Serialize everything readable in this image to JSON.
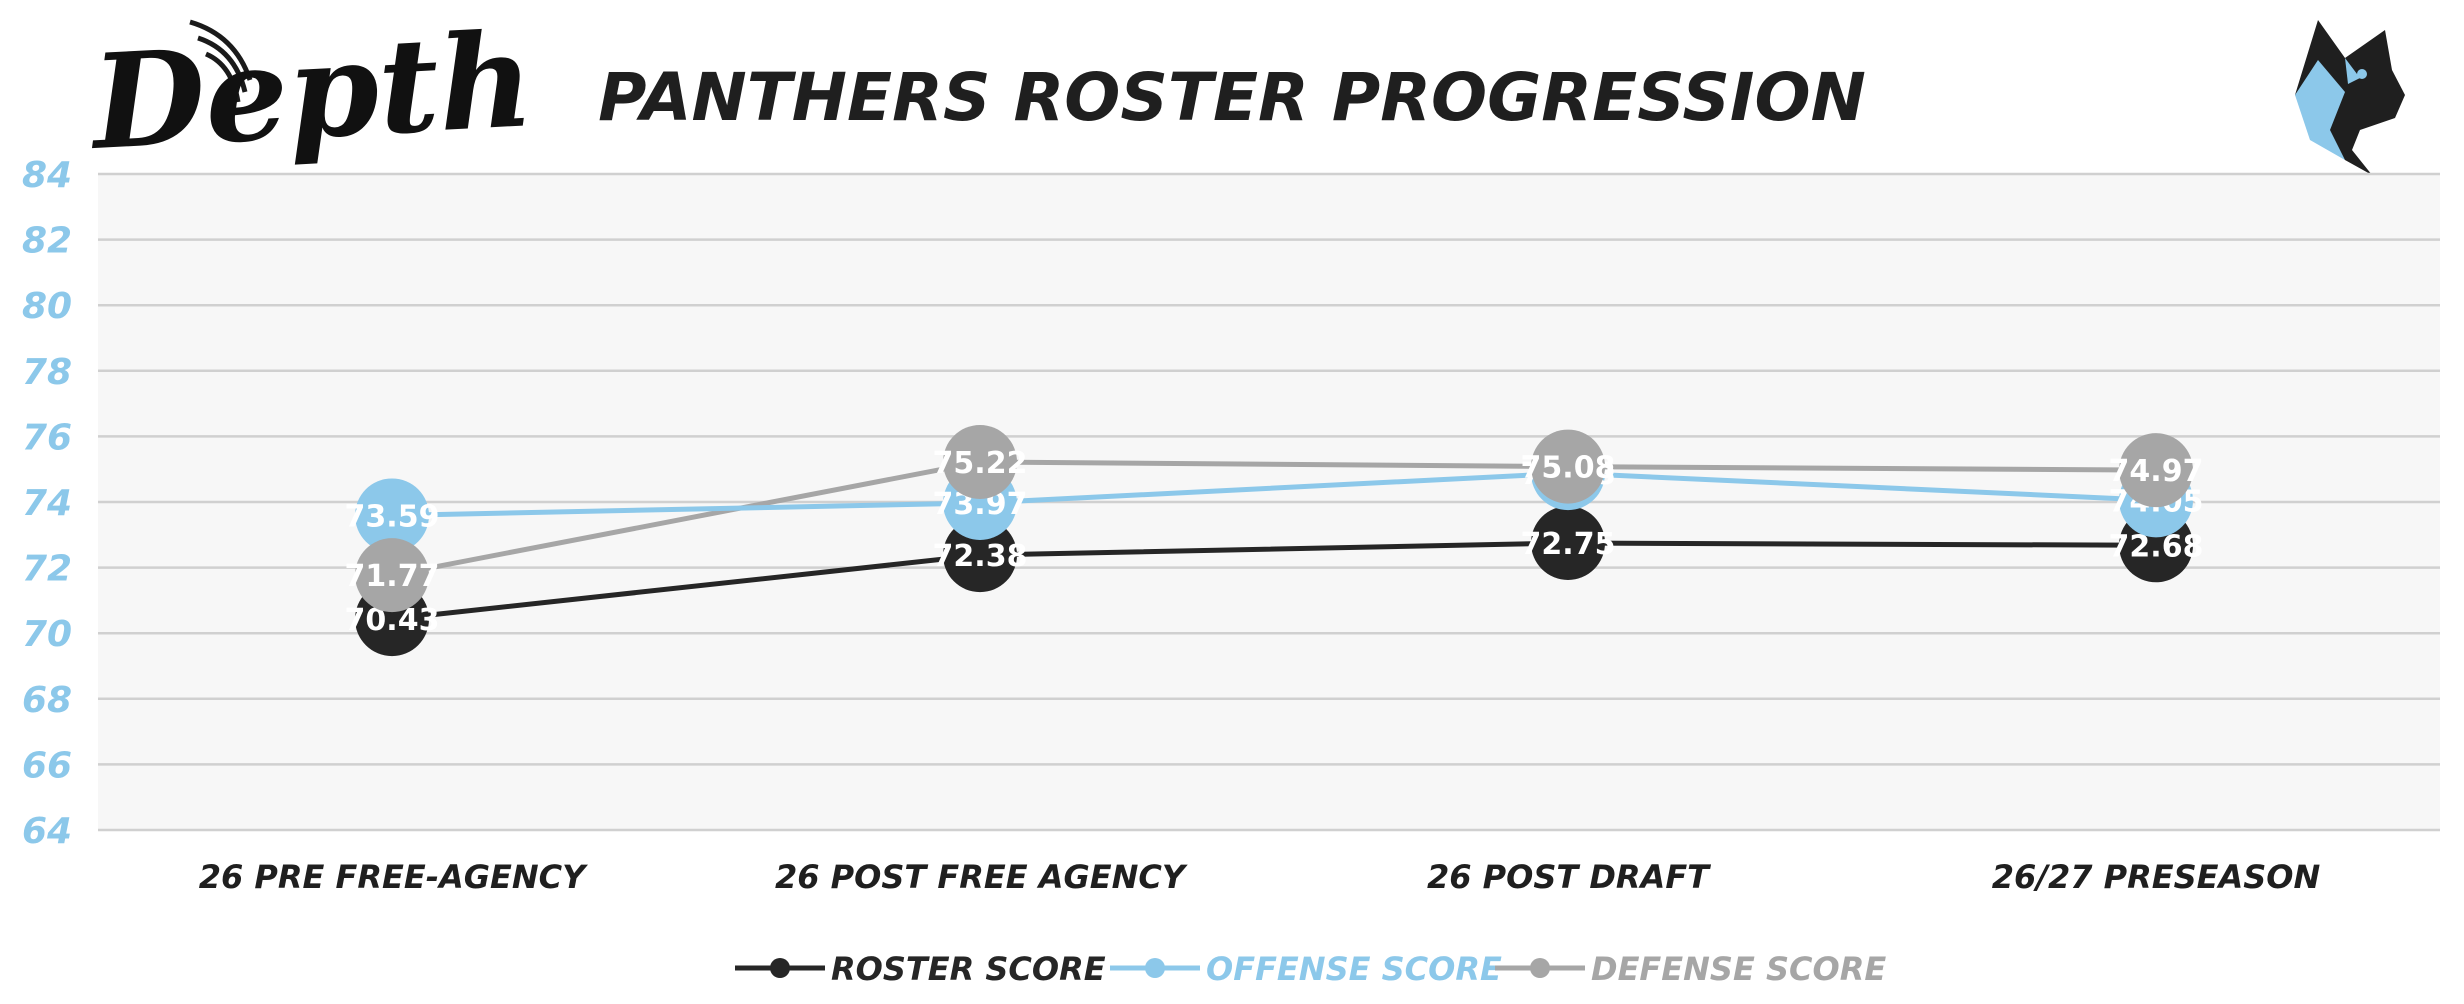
{
  "logo": {
    "brand_text": "Depth"
  },
  "colors": {
    "plot_bg": "#f7f7f7",
    "grid": "#d0d0d0",
    "axis_tick": "#8cc8ea",
    "text_dark": "#1f1f1f",
    "panther_blue": "#8cc8ea",
    "panther_dark": "#1a1a1a"
  },
  "chart_data": {
    "type": "line",
    "title": "PANTHERS ROSTER PROGRESSION",
    "categories": [
      "26 PRE FREE-AGENCY",
      "26 POST FREE AGENCY",
      "26 POST DRAFT",
      "26/27 PRESEASON"
    ],
    "ylim": [
      64,
      84
    ],
    "yticks": [
      64,
      66,
      68,
      70,
      72,
      74,
      76,
      78,
      80,
      82,
      84
    ],
    "grid": true,
    "legend_position": "bottom",
    "series": [
      {
        "name": "ROSTER SCORE",
        "color": "#262626",
        "values": [
          70.43,
          72.38,
          72.75,
          72.68
        ],
        "labels": [
          "70.43",
          "72.38",
          "72.75",
          "72.68"
        ]
      },
      {
        "name": "OFFENSE SCORE",
        "color": "#8cc8ea",
        "values": [
          73.59,
          73.97,
          74.88,
          74.05
        ],
        "labels": [
          "73.59",
          "73.97",
          "74.88",
          "74.05"
        ]
      },
      {
        "name": "DEFENSE SCORE",
        "color": "#a6a6a6",
        "values": [
          71.77,
          75.22,
          75.08,
          74.97
        ],
        "labels": [
          "71.77",
          "75.22",
          "75.08",
          "74.97"
        ]
      }
    ]
  }
}
